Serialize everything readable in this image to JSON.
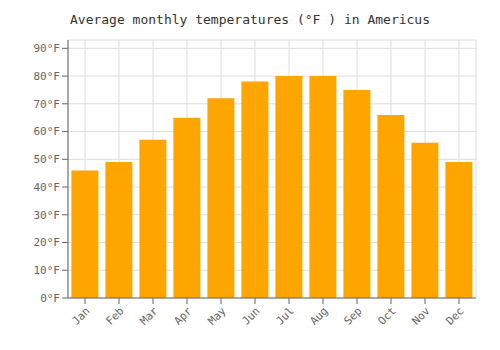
{
  "chart_data": {
    "type": "bar",
    "title": "Average monthly temperatures (°F ) in Americus",
    "categories": [
      "Jan",
      "Feb",
      "Mar",
      "Apr",
      "May",
      "Jun",
      "Jul",
      "Aug",
      "Sep",
      "Oct",
      "Nov",
      "Dec"
    ],
    "values": [
      46,
      49,
      57,
      65,
      72,
      78,
      80,
      80,
      75,
      66,
      56,
      49
    ],
    "color": "#FFA500",
    "ylim": [
      0,
      93
    ],
    "yticks": [
      {
        "value": 0,
        "label": "0°F"
      },
      {
        "value": 10,
        "label": "10°F"
      },
      {
        "value": 20,
        "label": "20°F"
      },
      {
        "value": 30,
        "label": "30°F"
      },
      {
        "value": 40,
        "label": "40°F"
      },
      {
        "value": 50,
        "label": "50°F"
      },
      {
        "value": 60,
        "label": "60°F"
      },
      {
        "value": 70,
        "label": "70°F"
      },
      {
        "value": 80,
        "label": "80°F"
      },
      {
        "value": 90,
        "label": "90°F"
      }
    ],
    "grid": true
  }
}
